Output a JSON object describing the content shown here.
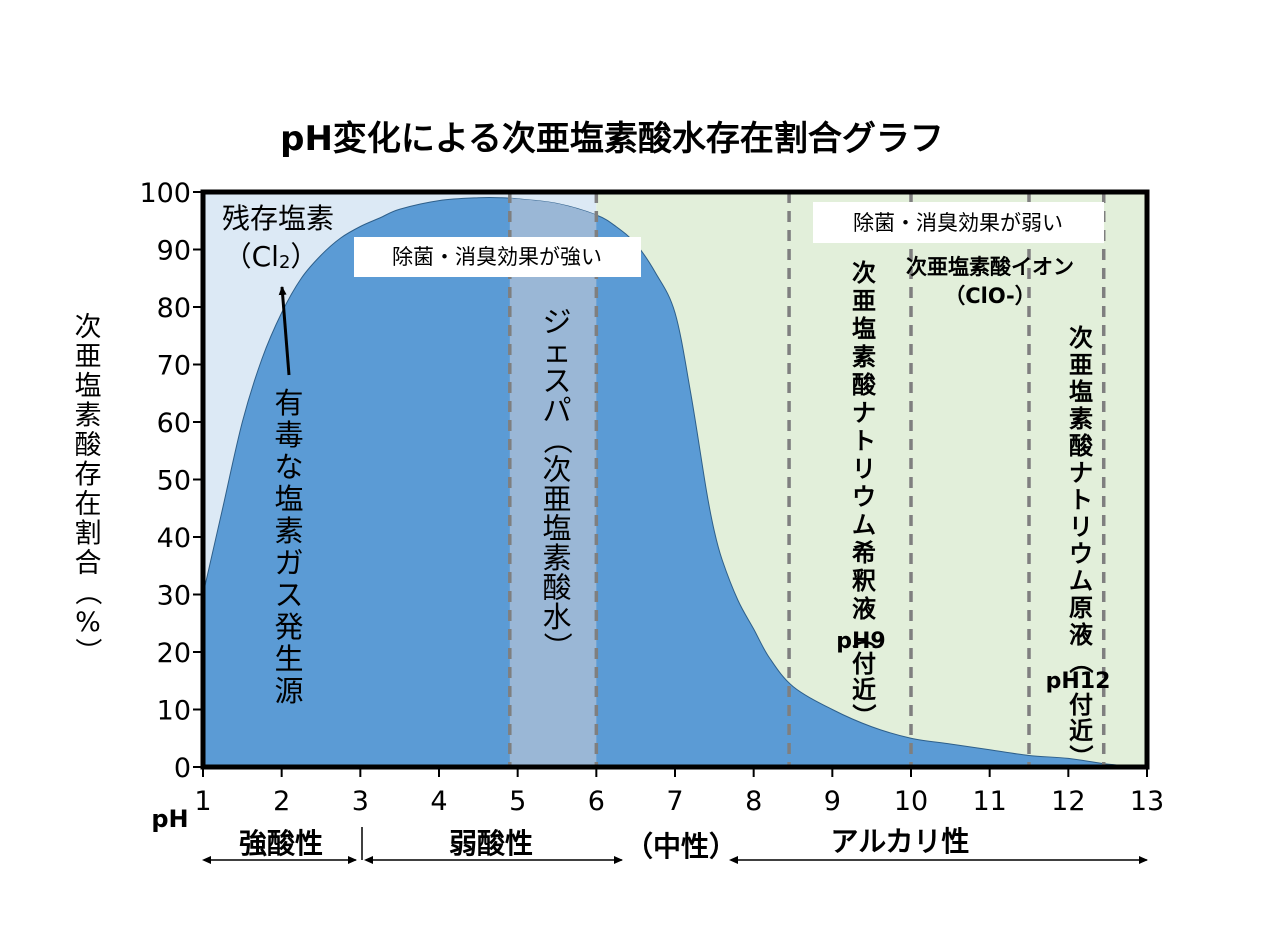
{
  "chart_data": {
    "type": "area",
    "title": "pH変化による次亜塩素酸水存在割合グラフ",
    "ylabel": "次亜塩素酸存在割合（%）",
    "xlabel": "pH",
    "xlim": [
      1,
      13
    ],
    "ylim": [
      0,
      100
    ],
    "x_ticks": [
      "1",
      "2",
      "3",
      "4",
      "5",
      "6",
      "7",
      "8",
      "9",
      "10",
      "11",
      "12",
      "13"
    ],
    "y_ticks": [
      "0",
      "10",
      "20",
      "30",
      "40",
      "50",
      "60",
      "70",
      "80",
      "90",
      "100"
    ],
    "grid": false,
    "series": [
      {
        "name": "次亜塩素酸存在割合",
        "x": [
          1,
          1.25,
          1.5,
          1.75,
          2,
          2.25,
          2.5,
          2.75,
          3,
          3.25,
          3.5,
          4,
          4.5,
          4.8,
          5,
          5.5,
          6,
          6.25,
          6.5,
          6.75,
          7,
          7.2,
          7.4,
          7.5,
          7.6,
          7.8,
          8,
          8.2,
          8.5,
          9,
          9.5,
          10,
          10.5,
          11,
          11.5,
          12,
          12.5,
          13
        ],
        "values": [
          30,
          45,
          60,
          71,
          79,
          85,
          89,
          92,
          94,
          95.5,
          97,
          98.5,
          99,
          99,
          98.8,
          98,
          96,
          94,
          91,
          86,
          79,
          65,
          48,
          41,
          36,
          29,
          24,
          19,
          14,
          10,
          7,
          5,
          4,
          3,
          2,
          1.5,
          0.5,
          0
        ]
      }
    ],
    "colors": {
      "main_area": "#5b9bd5",
      "jespa_band": "#9ab7d6",
      "chlorine_region": "#dce9f5",
      "alkaline_region": "#e2efda",
      "dashed_line": "#7f7f7f"
    },
    "dashed_lines_ph": [
      4.9,
      6.0,
      8.45,
      10.0,
      11.5,
      12.45
    ],
    "jespa_band_ph": [
      4.9,
      6.0
    ]
  },
  "annotations": {
    "chlorine_label_line1": "残存塩素",
    "chlorine_label_line2": "（Cl",
    "chlorine_label_sub": "2",
    "chlorine_label_close": "）",
    "toxic_gas": [
      "有",
      "毒",
      "な",
      "塩",
      "素",
      "ガ",
      "ス",
      "発",
      "生",
      "源"
    ],
    "strong_effect": "除菌・消臭効果が強い",
    "weak_effect": "除菌・消臭効果が弱い",
    "jespa": [
      "ジ",
      "ェ",
      "ス",
      "パ",
      "（",
      "次",
      "亜",
      "塩",
      "素",
      "酸",
      "水",
      "）"
    ],
    "hypochlorite_ion_line1": "次亜塩素酸イオン",
    "hypochlorite_ion_line2": "（ClO-）",
    "diluted_solution": [
      "次",
      "亜",
      "塩",
      "素",
      "酸",
      "ナ",
      "ト",
      "リ",
      "ウ",
      "ム",
      "希",
      "釈",
      "液",
      "（"
    ],
    "diluted_ph": "pH9",
    "diluted_near": [
      "付",
      "近",
      "）"
    ],
    "stock_solution": [
      "次",
      "亜",
      "塩",
      "素",
      "酸",
      "ナ",
      "ト",
      "リ",
      "ウ",
      "ム",
      "原",
      "液",
      "（"
    ],
    "stock_ph": "pH12",
    "stock_near": [
      "付",
      "近",
      "）"
    ]
  },
  "ranges": {
    "ph_label": "pH",
    "strong_acid": "強酸性",
    "weak_acid": "弱酸性",
    "neutral": "（中性）",
    "alkaline": "アルカリ性"
  }
}
